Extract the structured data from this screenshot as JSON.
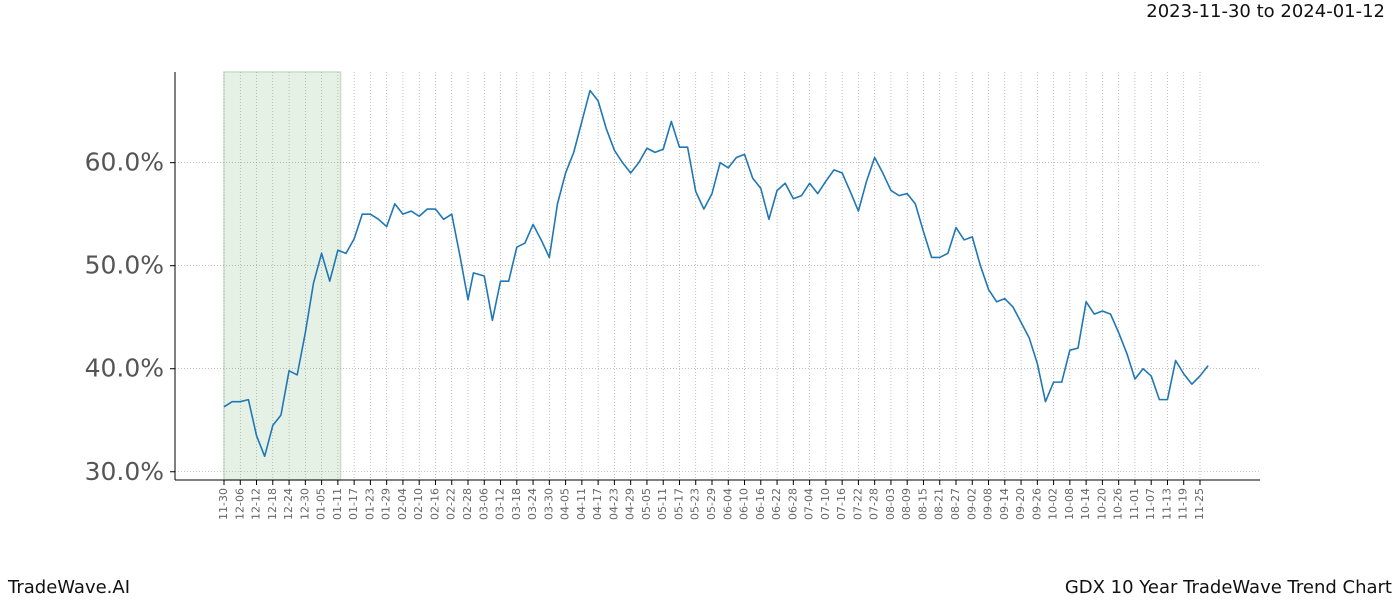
{
  "chart_data": {
    "type": "line",
    "subtitle": "2023-11-30 to 2024-01-12",
    "footer_left": "TradeWave.AI",
    "footer_right": "GDX 10 Year TradeWave Trend Chart",
    "highlight": [
      "11-30",
      "01-12"
    ],
    "highlight_color": "#c8dfc8",
    "grid": true,
    "xticks": [
      "11-30",
      "12-06",
      "12-12",
      "12-18",
      "12-24",
      "12-30",
      "01-05",
      "01-11",
      "01-17",
      "01-23",
      "01-29",
      "02-04",
      "02-10",
      "02-16",
      "02-22",
      "02-28",
      "03-06",
      "03-12",
      "03-18",
      "03-24",
      "03-30",
      "04-05",
      "04-11",
      "04-17",
      "04-23",
      "04-29",
      "05-05",
      "05-11",
      "05-17",
      "05-23",
      "05-29",
      "06-04",
      "06-10",
      "06-16",
      "06-22",
      "06-28",
      "07-04",
      "07-10",
      "07-16",
      "07-22",
      "07-28",
      "08-03",
      "08-09",
      "08-15",
      "08-21",
      "08-27",
      "09-02",
      "09-08",
      "09-14",
      "09-20",
      "09-26",
      "10-02",
      "10-08",
      "10-14",
      "10-20",
      "10-26",
      "11-01",
      "11-07",
      "11-13",
      "11-19",
      "11-25"
    ],
    "ylim": [
      29.2,
      68.8
    ],
    "yticks": [
      {
        "value": 30,
        "label": "30.0%"
      },
      {
        "value": 40,
        "label": "40.0%"
      },
      {
        "value": 50,
        "label": "50.0%"
      },
      {
        "value": 60,
        "label": "60.0%"
      }
    ],
    "x": [
      "11-30",
      "12-03",
      "12-06",
      "12-09",
      "12-12",
      "12-15",
      "12-18",
      "12-21",
      "12-24",
      "12-27",
      "12-30",
      "01-02",
      "01-05",
      "01-08",
      "01-11",
      "01-14",
      "01-17",
      "01-20",
      "01-23",
      "01-26",
      "01-29",
      "02-01",
      "02-04",
      "02-07",
      "02-10",
      "02-13",
      "02-16",
      "02-19",
      "02-22",
      "02-25",
      "02-28",
      "03-02",
      "03-06",
      "03-09",
      "03-12",
      "03-15",
      "03-18",
      "03-21",
      "03-24",
      "03-27",
      "03-30",
      "04-02",
      "04-05",
      "04-08",
      "04-11",
      "04-14",
      "04-17",
      "04-20",
      "04-23",
      "04-26",
      "04-29",
      "05-02",
      "05-05",
      "05-08",
      "05-11",
      "05-14",
      "05-17",
      "05-20",
      "05-23",
      "05-26",
      "05-29",
      "06-01",
      "06-04",
      "06-07",
      "06-10",
      "06-13",
      "06-16",
      "06-19",
      "06-22",
      "06-25",
      "06-28",
      "07-01",
      "07-04",
      "07-07",
      "07-10",
      "07-13",
      "07-16",
      "07-19",
      "07-22",
      "07-25",
      "07-28",
      "07-31",
      "08-03",
      "08-06",
      "08-09",
      "08-12",
      "08-15",
      "08-18",
      "08-21",
      "08-24",
      "08-27",
      "08-30",
      "09-02",
      "09-05",
      "09-08",
      "09-11",
      "09-14",
      "09-17",
      "09-20",
      "09-23",
      "09-26",
      "09-29",
      "10-02",
      "10-05",
      "10-08",
      "10-11",
      "10-14",
      "10-17",
      "10-20",
      "10-23",
      "10-26",
      "10-29",
      "11-01",
      "11-04",
      "11-07",
      "11-10",
      "11-13",
      "11-16",
      "11-19",
      "11-22",
      "11-25",
      "11-28"
    ],
    "series": [
      {
        "color": "#1f77b4",
        "values": [
          36.3,
          36.8,
          36.8,
          37.0,
          33.5,
          31.5,
          34.5,
          35.5,
          39.8,
          39.4,
          43.5,
          48.3,
          51.2,
          48.5,
          51.5,
          51.2,
          52.6,
          55,
          55,
          54.5,
          53.8,
          56,
          55,
          55.3,
          54.8,
          55.5,
          55.5,
          54.5,
          55,
          51,
          46.7,
          49.3,
          49,
          44.7,
          48.5,
          48.5,
          51.8,
          52.2,
          54,
          52.5,
          50.8,
          56,
          59,
          61,
          64,
          67,
          66,
          63.3,
          61.2,
          60,
          59,
          60,
          61.4,
          61,
          61.3,
          64,
          61.5,
          61.5,
          57.2,
          55.5,
          57,
          60,
          59.5,
          60.5,
          60.8,
          58.5,
          57.5,
          54.5,
          57.3,
          58,
          56.5,
          56.8,
          58,
          57,
          58.2,
          59.3,
          59,
          57.2,
          55.3,
          58.2,
          60.5,
          59,
          57.3,
          56.8,
          57,
          56,
          53.3,
          50.8,
          50.8,
          51.2,
          53.7,
          52.5,
          52.8,
          50,
          47.7,
          46.5,
          46.8,
          46,
          44.5,
          43,
          40.5,
          36.8,
          38.7,
          38.7,
          41.8,
          42,
          46.5,
          45.3,
          45.6,
          45.3,
          43.5,
          41.5,
          39,
          40,
          39.3,
          37,
          37,
          40.8,
          39.5,
          38.5,
          39.3,
          40.3
        ]
      }
    ]
  }
}
